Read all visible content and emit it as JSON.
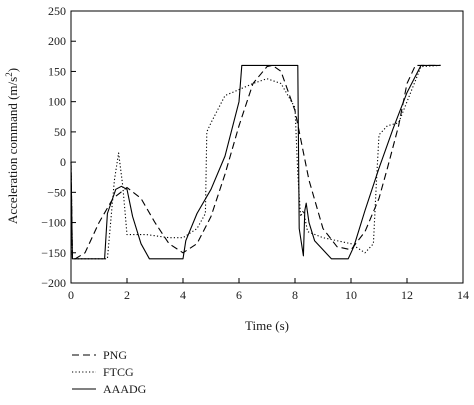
{
  "chart_data": {
    "type": "line",
    "xlabel": "Time (s)",
    "ylabel_main": "Acceleration command (m/s",
    "ylabel_sup": "2",
    "ylabel_close": ")",
    "xlim": [
      0,
      14
    ],
    "ylim": [
      -200,
      250
    ],
    "xticks": [
      "0",
      "2",
      "4",
      "6",
      "8",
      "10",
      "12",
      "14"
    ],
    "yticks": [
      "250",
      "200",
      "150",
      "100",
      "50",
      "0",
      "−50",
      "−100",
      "−150",
      "−200"
    ],
    "legend_position": "bottom-left",
    "series": [
      {
        "name": "PNG",
        "style": "dashed",
        "x": [
          0,
          0.05,
          0.15,
          0.5,
          1.0,
          1.5,
          2.0,
          2.5,
          3.0,
          3.5,
          4.0,
          4.5,
          5.0,
          5.5,
          6.0,
          6.5,
          7.0,
          7.2,
          7.5,
          8.0,
          8.5,
          9.0,
          9.5,
          10.0,
          10.5,
          11.0,
          11.3,
          11.7,
          12.0,
          12.3,
          13.2
        ],
        "y": [
          0,
          -160,
          -160,
          -150,
          -100,
          -60,
          -42,
          -60,
          -100,
          -135,
          -150,
          -135,
          -90,
          -20,
          60,
          130,
          158,
          160,
          150,
          85,
          -30,
          -110,
          -140,
          -145,
          -115,
          -60,
          -10,
          60,
          130,
          160,
          160
        ]
      },
      {
        "name": "FTCG",
        "style": "dotted",
        "x": [
          0,
          0.05,
          0.15,
          1.3,
          1.55,
          1.7,
          1.85,
          2.0,
          2.3,
          2.7,
          3.5,
          4.0,
          4.5,
          4.8,
          4.85,
          5.0,
          5.5,
          6.0,
          6.5,
          7.0,
          7.5,
          8.0,
          8.1,
          8.2,
          8.3,
          8.45,
          9.0,
          10.0,
          10.5,
          10.8,
          10.9,
          11.0,
          11.3,
          11.7,
          12.0,
          12.5,
          13.2
        ],
        "y": [
          0,
          -160,
          -160,
          -160,
          -30,
          15,
          -40,
          -120,
          -120,
          -120,
          -125,
          -125,
          -110,
          -85,
          50,
          65,
          110,
          120,
          130,
          138,
          130,
          90,
          -20,
          -90,
          -80,
          -115,
          -125,
          -135,
          -150,
          -135,
          -40,
          45,
          60,
          65,
          100,
          158,
          160
        ]
      },
      {
        "name": "AAADG",
        "style": "solid",
        "x": [
          0,
          0.05,
          0.15,
          1.2,
          1.3,
          1.6,
          1.8,
          2.0,
          2.2,
          2.5,
          2.8,
          3.0,
          4.0,
          4.1,
          4.5,
          5.0,
          5.5,
          6.0,
          6.1,
          8.1,
          8.15,
          8.3,
          8.35,
          8.4,
          8.5,
          8.7,
          9.0,
          9.3,
          9.7,
          9.9,
          10.1,
          10.5,
          11.0,
          11.5,
          12.0,
          12.5,
          13.2
        ],
        "y": [
          0,
          -160,
          -160,
          -160,
          -85,
          -45,
          -40,
          -45,
          -90,
          -135,
          -160,
          -160,
          -160,
          -130,
          -85,
          -45,
          10,
          100,
          160,
          160,
          -110,
          -155,
          -80,
          -68,
          -100,
          -130,
          -145,
          -160,
          -160,
          -160,
          -140,
          -80,
          -10,
          55,
          115,
          160,
          160
        ]
      }
    ]
  }
}
